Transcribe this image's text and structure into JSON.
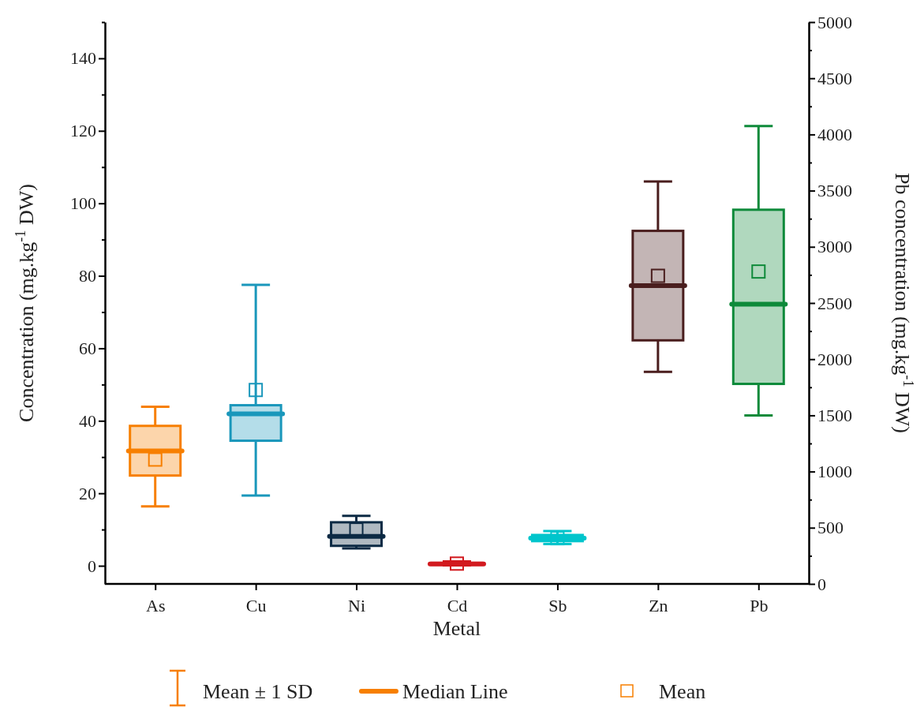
{
  "chart_data": {
    "type": "box",
    "xlabel": "Metal",
    "ylabel": "Concentration (mg.kg$^{-1}$ DW)",
    "y2label": "Pb concentration (mg.kg$^{-1}$ DW)",
    "categories": [
      "As",
      "Cu",
      "Ni",
      "Cd",
      "Sb",
      "Zn",
      "Pb"
    ],
    "ylim": [
      -5,
      150
    ],
    "yticks": [
      0,
      {
        "value": 10,
        "label": null
      },
      20,
      {
        "value": 30,
        "label": null
      },
      40,
      {
        "value": 50,
        "label": null
      },
      60,
      {
        "value": 70,
        "label": null
      },
      80,
      {
        "value": 90,
        "label": null
      },
      100,
      {
        "value": 110,
        "label": null
      },
      120,
      {
        "value": 130,
        "label": null
      },
      140,
      {
        "value": 150,
        "label": null
      }
    ],
    "y2lim": [
      0,
      5000
    ],
    "y2ticks": [
      0,
      {
        "value": 250,
        "label": null
      },
      500,
      {
        "value": 750,
        "label": null
      },
      1000,
      {
        "value": 1250,
        "label": null
      },
      1500,
      {
        "value": 1750,
        "label": null
      },
      2000,
      {
        "value": 2250,
        "label": null
      },
      2500,
      {
        "value": 2750,
        "label": null
      },
      3000,
      {
        "value": 3250,
        "label": null
      },
      3500,
      {
        "value": 3750,
        "label": null
      },
      4000,
      {
        "value": 4250,
        "label": null
      },
      4500,
      {
        "value": 4750,
        "label": null
      },
      5000
    ],
    "series": [
      {
        "colors": [
          "#f77f00",
          "#1a97bb",
          "#0c2a44",
          "#d21a1f",
          "#00c5cc",
          "#4a1e1e",
          null
        ],
        "boxes": [
          {
            "low": 16.4,
            "q1": 24.9,
            "median": 31.7,
            "q3": 38.6,
            "high": 43.9,
            "mean": 29.3
          },
          {
            "low": 19.4,
            "q1": 34.5,
            "median": 41.9,
            "q3": 44.3,
            "high": 77.5,
            "mean": 48.5
          },
          {
            "low": 4.8,
            "q1": 5.5,
            "median": 8.1,
            "q3": 12,
            "high": 13.8,
            "mean": 10
          },
          {
            "low": 0.1,
            "q1": 0.3,
            "median": 0.5,
            "q3": 0.8,
            "high": 1.2,
            "mean": 0.6
          },
          {
            "low": 6,
            "q1": 6.8,
            "median": 7.6,
            "q3": 8.5,
            "high": 9.6,
            "mean": 7.6
          },
          {
            "low": 53.5,
            "q1": 62.2,
            "median": 77.3,
            "q3": 92.4,
            "high": 106,
            "mean": 80
          },
          null
        ]
      },
      {
        "axis": "y2",
        "colors": [
          null,
          null,
          null,
          null,
          null,
          null,
          "#0e8a3a"
        ],
        "boxes": [
          null,
          null,
          null,
          null,
          null,
          null,
          {
            "low": 1500,
            "q1": 1780,
            "median": 2490,
            "q3": 3330,
            "high": 4075,
            "mean": 2780
          }
        ]
      }
    ],
    "annotations": [
      "Mean ± 1 SD",
      "Median Line",
      "Mean"
    ]
  }
}
